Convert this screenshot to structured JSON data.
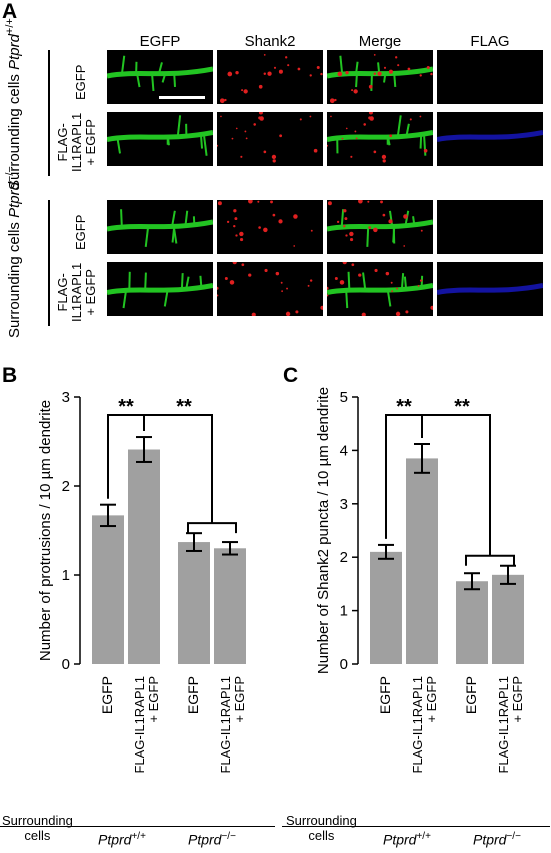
{
  "panel_a": {
    "letter": "A",
    "column_headers": [
      "EGFP",
      "Shank2",
      "Merge",
      "FLAG"
    ],
    "group_labels": [
      {
        "prefix": "Surrounding cells ",
        "genotype": "Ptprd",
        "superscript": "+/+"
      },
      {
        "prefix": "Surrounding cells ",
        "genotype": "Ptprd",
        "superscript": "−/−"
      }
    ],
    "row_labels": [
      [
        "EGFP"
      ],
      [
        "FLAG-",
        "IL1RAPL1",
        "+ EGFP"
      ],
      [
        "EGFP"
      ],
      [
        "FLAG-",
        "IL1RAPL1",
        "+ EGFP"
      ]
    ],
    "tile_colors": {
      "egfp": "#22c422",
      "shank2": "#e02020",
      "flag": "#1818c8",
      "background": "#000000"
    }
  },
  "panel_b": {
    "letter": "B",
    "significance": [
      "**",
      "**"
    ]
  },
  "panel_c": {
    "letter": "C",
    "significance": [
      "**",
      "**"
    ]
  },
  "footer": {
    "surrounding_label": [
      "Surrounding",
      "cells"
    ],
    "genotypes": [
      {
        "name": "Ptprd",
        "superscript": "+/+"
      },
      {
        "name": "Ptprd",
        "superscript": "−/−"
      }
    ]
  },
  "chart_data": [
    {
      "type": "bar",
      "panel": "B",
      "categories": [
        "EGFP",
        "FLAG-IL1RAPL1 + EGFP",
        "EGFP",
        "FLAG-IL1RAPL1 + EGFP"
      ],
      "groups": [
        "Ptprd +/+",
        "Ptprd +/+",
        "Ptprd −/−",
        "Ptprd −/−"
      ],
      "values": [
        1.67,
        2.41,
        1.37,
        1.3
      ],
      "errors": [
        0.12,
        0.14,
        0.1,
        0.07
      ],
      "ylabel": "Number of protrusions / 10 µm dendrite",
      "ylim": [
        0,
        3
      ],
      "yticks": [
        0,
        1,
        2,
        3
      ],
      "bar_color": "#a0a0a0"
    },
    {
      "type": "bar",
      "panel": "C",
      "categories": [
        "EGFP",
        "FLAG-IL1RAPL1 + EGFP",
        "EGFP",
        "FLAG-IL1RAPL1 + EGFP"
      ],
      "groups": [
        "Ptprd +/+",
        "Ptprd +/+",
        "Ptprd −/−",
        "Ptprd −/−"
      ],
      "values": [
        2.1,
        3.85,
        1.55,
        1.67
      ],
      "errors": [
        0.13,
        0.27,
        0.15,
        0.17
      ],
      "ylabel": "Number of Shank2 puncta / 10 µm dendrite",
      "ylim": [
        0,
        5
      ],
      "yticks": [
        0,
        1,
        2,
        3,
        4,
        5
      ],
      "bar_color": "#a0a0a0"
    }
  ]
}
